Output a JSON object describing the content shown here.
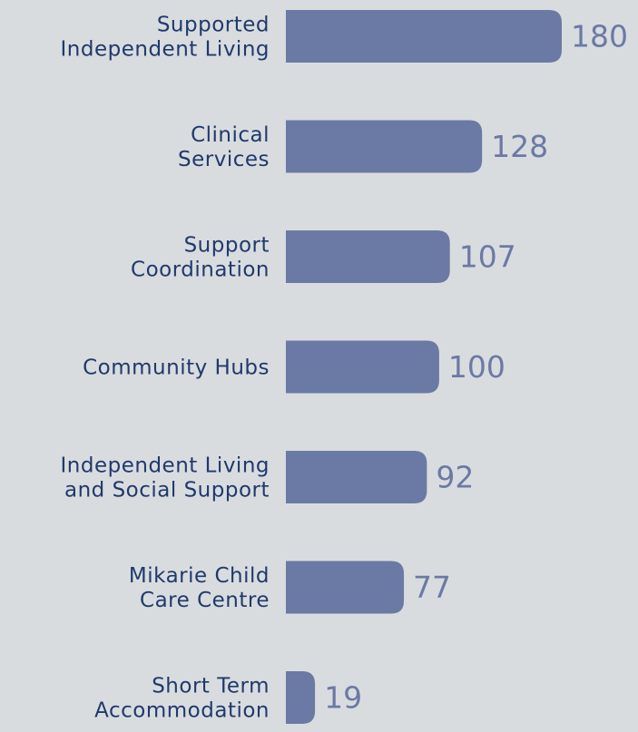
{
  "chart_data": {
    "type": "bar",
    "orientation": "horizontal",
    "categories": [
      "Supported\nIndependent Living",
      "Clinical\nServices",
      "Support\nCoordination",
      "Community Hubs",
      "Independent Living\nand Social Support",
      "Mikarie Child\nCare Centre",
      "Short Term\nAccommodation"
    ],
    "values": [
      180,
      128,
      107,
      100,
      92,
      77,
      19
    ],
    "color": "#6b7aa4"
  }
}
